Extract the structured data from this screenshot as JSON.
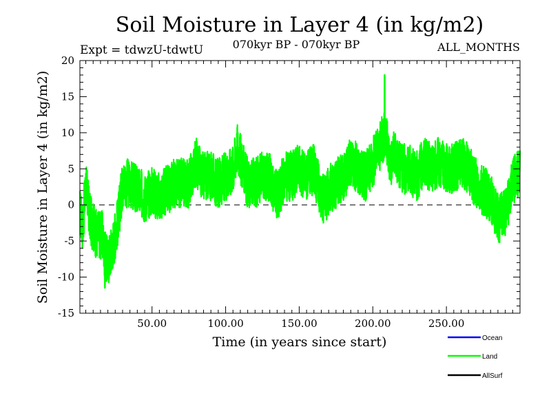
{
  "chart_data": {
    "type": "line",
    "title": "Soil Moisture in Layer 4 (in kg/m2)",
    "subtitle_left": "Expt = tdwzU-tdwtU",
    "subtitle_center": "070kyr BP - 070kyr BP",
    "subtitle_right": "ALL_MONTHS",
    "xlabel": "Time (in years since start)",
    "ylabel": "Soil Moisture in Layer 4 (in kg/m2)",
    "xlim": [
      1,
      300
    ],
    "ylim": [
      -15,
      20
    ],
    "xticks": [
      50,
      100,
      150,
      200,
      250
    ],
    "xtick_labels": [
      "50.00",
      "100.00",
      "150.00",
      "200.00",
      "250.00"
    ],
    "yticks": [
      -15,
      -10,
      -5,
      0,
      5,
      10,
      15,
      20
    ],
    "ytick_labels": [
      "-15",
      "-10",
      "-5",
      "0",
      "5",
      "10",
      "15",
      "20"
    ],
    "zero_line": 0,
    "legend": [
      {
        "name": "Ocean",
        "color": "#0000ff"
      },
      {
        "name": "Land",
        "color": "#00ff00"
      },
      {
        "name": "AllSurf",
        "color": "#000000"
      }
    ],
    "series": [
      {
        "name": "Land",
        "color": "#00ff00",
        "envelope_note": "monthly series; trend points (year, value) with peak-to-peak noise amplitude",
        "trend": [
          [
            1,
            -1
          ],
          [
            3,
            -3
          ],
          [
            5,
            3
          ],
          [
            8,
            -2
          ],
          [
            12,
            -4
          ],
          [
            16,
            -4
          ],
          [
            18,
            -7
          ],
          [
            20,
            -8
          ],
          [
            24,
            -5
          ],
          [
            27,
            -2
          ],
          [
            30,
            3
          ],
          [
            35,
            3
          ],
          [
            40,
            2
          ],
          [
            45,
            1
          ],
          [
            50,
            2
          ],
          [
            55,
            1
          ],
          [
            60,
            2
          ],
          [
            65,
            3
          ],
          [
            70,
            3
          ],
          [
            75,
            3
          ],
          [
            80,
            6
          ],
          [
            85,
            4
          ],
          [
            90,
            4
          ],
          [
            95,
            3
          ],
          [
            100,
            4
          ],
          [
            105,
            5
          ],
          [
            108,
            8
          ],
          [
            112,
            5
          ],
          [
            115,
            3
          ],
          [
            120,
            3
          ],
          [
            125,
            4
          ],
          [
            130,
            4
          ],
          [
            135,
            1
          ],
          [
            140,
            4
          ],
          [
            145,
            4
          ],
          [
            150,
            5
          ],
          [
            155,
            4
          ],
          [
            160,
            5
          ],
          [
            165,
            1
          ],
          [
            168,
            1
          ],
          [
            170,
            2
          ],
          [
            175,
            3
          ],
          [
            180,
            4
          ],
          [
            185,
            6
          ],
          [
            190,
            5
          ],
          [
            195,
            4
          ],
          [
            200,
            6
          ],
          [
            205,
            8
          ],
          [
            208,
            10
          ],
          [
            212,
            6
          ],
          [
            215,
            7
          ],
          [
            220,
            5
          ],
          [
            225,
            5
          ],
          [
            230,
            4
          ],
          [
            235,
            6
          ],
          [
            240,
            5
          ],
          [
            245,
            6
          ],
          [
            250,
            5
          ],
          [
            255,
            5
          ],
          [
            260,
            6
          ],
          [
            265,
            5
          ],
          [
            270,
            3
          ],
          [
            275,
            2
          ],
          [
            280,
            1
          ],
          [
            285,
            -2
          ],
          [
            290,
            -1
          ],
          [
            295,
            3
          ],
          [
            300,
            5
          ]
        ],
        "noise_amplitude": 3.5,
        "max": [
          208,
          18
        ],
        "min": [
          18,
          -11.5
        ]
      }
    ]
  }
}
